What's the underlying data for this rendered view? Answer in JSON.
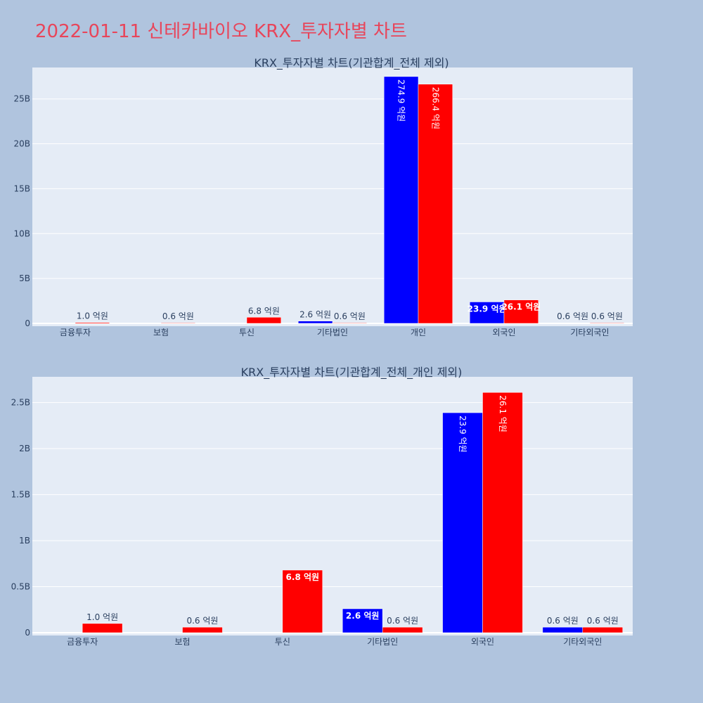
{
  "title": "2022-01-11 신테카바이오 KRX_투자자별 차트",
  "colors": {
    "background": "#b0c4de",
    "plot_bg": "#e5ecf6",
    "series_a": "#0000ff",
    "series_b": "#ff0000",
    "title": "#e8455a"
  },
  "chart_data": [
    {
      "type": "bar",
      "title": "KRX_투자자별 차트(기관합계_전체 제외)",
      "categories": [
        "금융투자",
        "보험",
        "투신",
        "기타법인",
        "개인",
        "외국인",
        "기타외국인"
      ],
      "ylim": [
        0,
        28.5
      ],
      "ytick_values": [
        0,
        5,
        10,
        15,
        20,
        25
      ],
      "ytick_labels": [
        "0",
        "5B",
        "10B",
        "15B",
        "20B",
        "25B"
      ],
      "series": [
        {
          "name": "series-a",
          "values": [
            null,
            null,
            null,
            0.26,
            27.49,
            2.39,
            null
          ],
          "labels": [
            "",
            "",
            "",
            "2.6 억원",
            "274.9 억원",
            "23.9 억원",
            ""
          ]
        },
        {
          "name": "series-b",
          "values": [
            0.1,
            0.06,
            0.68,
            0.06,
            26.64,
            2.61,
            0.06
          ],
          "labels": [
            "1.0 억원",
            "0.6 억원",
            "6.8 억원",
            "0.6 억원",
            "266.4 억원",
            "26.1 억원",
            "0.6 억원"
          ]
        }
      ],
      "other_labels": [
        {
          "category_index": 6,
          "text": "0.6 억원"
        }
      ]
    },
    {
      "type": "bar",
      "title": "KRX_투자자별 차트(기관합계_전체_개인 제외)",
      "categories": [
        "금융투자",
        "보험",
        "투신",
        "기타법인",
        "외국인",
        "기타외국인"
      ],
      "ylim": [
        0,
        2.78
      ],
      "ytick_values": [
        0,
        0.5,
        1,
        1.5,
        2,
        2.5
      ],
      "ytick_labels": [
        "0",
        "0.5B",
        "1B",
        "1.5B",
        "2B",
        "2.5B"
      ],
      "series": [
        {
          "name": "series-a",
          "values": [
            null,
            null,
            null,
            0.26,
            2.39,
            0.06
          ],
          "labels": [
            "",
            "",
            "",
            "2.6 억원",
            "23.9 억원",
            "0.6 억원"
          ]
        },
        {
          "name": "series-b",
          "values": [
            0.1,
            0.06,
            0.68,
            0.06,
            2.61,
            0.06
          ],
          "labels": [
            "1.0 억원",
            "0.6 억원",
            "6.8 억원",
            "0.6 억원",
            "26.1 억원",
            "0.6 억원"
          ]
        }
      ]
    }
  ]
}
